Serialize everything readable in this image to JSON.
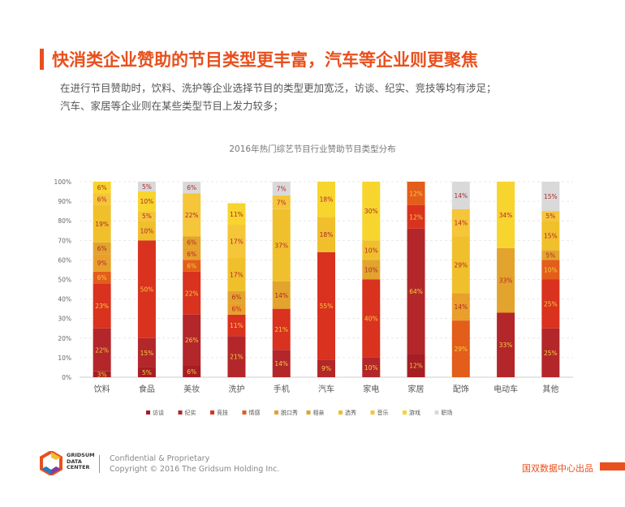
{
  "header": {
    "title": "快消类企业赞助的节目类型更丰富，汽车等企业则更聚焦",
    "subtitle_line1": "在进行节目赞助时，饮料、洗护等企业选择节目的类型更加宽泛，访谈、纪实、竞技等均有涉足；",
    "subtitle_line2": "汽车、家居等企业则在某些类型节目上发力较多；"
  },
  "chart_data": {
    "type": "bar",
    "stacked": true,
    "title": "2016年热门综艺节目行业赞助节目类型分布",
    "xlabel": "",
    "ylabel": "",
    "ylim": [
      0,
      100
    ],
    "yticks": [
      "0%",
      "10%",
      "20%",
      "30%",
      "40%",
      "50%",
      "60%",
      "70%",
      "80%",
      "90%",
      "100%"
    ],
    "grid": true,
    "legend_position": "bottom",
    "categories": [
      "饮料",
      "食品",
      "美妆",
      "洗护",
      "手机",
      "汽车",
      "家电",
      "家居",
      "配饰",
      "电动车",
      "其他"
    ],
    "series": [
      {
        "name": "访谈",
        "color": "#a61d24",
        "values": [
          3,
          5,
          6,
          0,
          0,
          0,
          0,
          12,
          0,
          0,
          0
        ],
        "labels": [
          "3%",
          "5%",
          "6%",
          "",
          "",
          "",
          "",
          "12%",
          "",
          "",
          ""
        ]
      },
      {
        "name": "纪实",
        "color": "#b3262a",
        "values": [
          22,
          15,
          26,
          21,
          14,
          9,
          10,
          64,
          0,
          33,
          25
        ],
        "labels": [
          "22%",
          "15%",
          "26%",
          "21%",
          "14%",
          "9%",
          "10%",
          "64%",
          "",
          "33%",
          "25%"
        ]
      },
      {
        "name": "竞技",
        "color": "#d9321f",
        "values": [
          23,
          50,
          22,
          11,
          21,
          55,
          40,
          12,
          0,
          0,
          25
        ],
        "labels": [
          "23%",
          "50%",
          "22%",
          "11%",
          "21%",
          "55%",
          "40%",
          "12%",
          "",
          "",
          "25%"
        ]
      },
      {
        "name": "情感",
        "color": "#e35d1b",
        "values": [
          6,
          0,
          6,
          0,
          0,
          0,
          0,
          12,
          29,
          0,
          10
        ],
        "labels": [
          "6%",
          "",
          "6%",
          "",
          "",
          "",
          "",
          "12%",
          "29%",
          "",
          "10%"
        ]
      },
      {
        "name": "脱口秀",
        "color": "#e8a02b",
        "values": [
          9,
          0,
          6,
          6,
          0,
          0,
          0,
          0,
          14,
          0,
          0
        ],
        "labels": [
          "9%",
          "",
          "6%",
          "6%",
          "",
          "",
          "",
          "",
          "14%",
          "",
          ""
        ]
      },
      {
        "name": "相亲",
        "color": "#e2a42c",
        "values": [
          6,
          0,
          6,
          6,
          14,
          0,
          10,
          0,
          0,
          33,
          5
        ],
        "labels": [
          "6%",
          "",
          "6%",
          "6%",
          "14%",
          "",
          "10%",
          "",
          "",
          "33%",
          "5%"
        ]
      },
      {
        "name": "选秀",
        "color": "#f0c02c",
        "values": [
          19,
          10,
          0,
          17,
          37,
          18,
          10,
          0,
          29,
          0,
          15
        ],
        "labels": [
          "19%",
          "10%",
          "",
          "17%",
          "37%",
          "18%",
          "10%",
          "",
          "29%",
          "",
          "15%"
        ]
      },
      {
        "name": "音乐",
        "color": "#f5c53a",
        "values": [
          6,
          5,
          22,
          17,
          7,
          0,
          0,
          0,
          14,
          0,
          5
        ],
        "labels": [
          "6%",
          "5%",
          "22%",
          "17%",
          "7%",
          "",
          "",
          "",
          "14%",
          "",
          "5%"
        ]
      },
      {
        "name": "游戏",
        "color": "#f7d52e",
        "values": [
          6,
          10,
          0,
          11,
          0,
          18,
          30,
          0,
          0,
          34,
          0
        ],
        "labels": [
          "6%",
          "10%",
          "",
          "11%",
          "",
          "18%",
          "30%",
          "",
          "",
          "34%",
          ""
        ]
      },
      {
        "name": "职场",
        "color": "#d9d9d9",
        "values": [
          0,
          5,
          6,
          0,
          7,
          0,
          0,
          0,
          14,
          0,
          15
        ],
        "labels": [
          "",
          "5%",
          "6%",
          "",
          "7%",
          "",
          "",
          "",
          "14%",
          "",
          "15%"
        ]
      }
    ]
  },
  "footer": {
    "brand_line1": "GRIDSUM",
    "brand_line2": "DATA",
    "brand_line3": "CENTER",
    "confidential": "Confidential & Proprietary",
    "copyright": "Copyright © 2016 The Gridsum Holding Inc.",
    "publisher": "国双数据中心出品"
  }
}
